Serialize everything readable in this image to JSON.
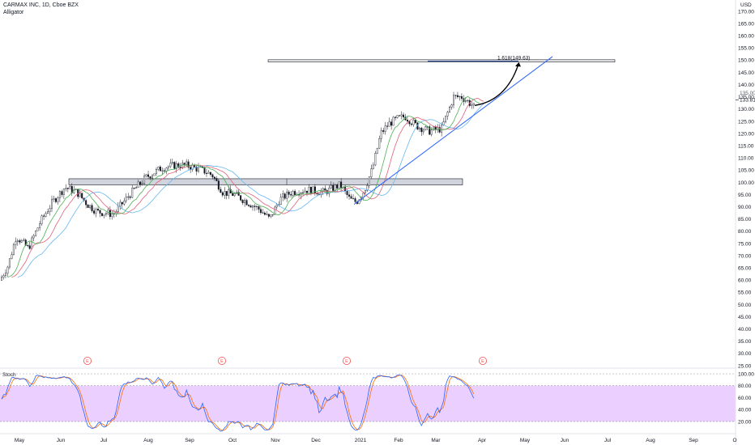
{
  "header": {
    "symbol_line": "CARMAX INC, 1D, Cboe BZX",
    "indicator": "Alligator"
  },
  "stoch_panel": {
    "title": "Stoch"
  },
  "price_axis": {
    "currency": "USD"
  },
  "colors": {
    "up": "#ffffff",
    "down": "#131722",
    "jaw": "#66b7f0",
    "teeth": "#e0607a",
    "lips": "#4caf50",
    "trendline": "#2962ff",
    "stoch_band": "#e8c8ff",
    "stoch_k": "#2962ff",
    "stoch_d": "#ff6d00",
    "zone_fill": "#d1d4dc",
    "earnings": "#ef5350"
  },
  "chart_data": [
    {
      "type": "candlestick",
      "title": "CARMAX INC, 1D, Cboe BZX",
      "ylim": [
        25,
        172
      ],
      "y_ticks": [
        25,
        30,
        35,
        40,
        45,
        50,
        55,
        60,
        65,
        70,
        75,
        80,
        85,
        90,
        95,
        100,
        105,
        110,
        115,
        120,
        125,
        130,
        135,
        140,
        145,
        150,
        155,
        160,
        165,
        170
      ],
      "x_ticks": [
        "May",
        "Jun",
        "Jul",
        "Aug",
        "Sep",
        "Oct",
        "Nov",
        "Dec",
        "2021",
        "Feb",
        "Mar",
        "Apr",
        "May",
        "Jun",
        "Jul",
        "Aug",
        "Sep",
        "O"
      ],
      "last_price_label": "133.81",
      "partial_label": "135.00",
      "price_path_monthly": [
        {
          "month": "May",
          "value": 62
        },
        {
          "month": "Jun",
          "value": 97
        },
        {
          "month": "Jul",
          "value": 88
        },
        {
          "month": "Aug",
          "value": 103
        },
        {
          "month": "Sep",
          "value": 106
        },
        {
          "month": "Oct",
          "value": 96
        },
        {
          "month": "Nov",
          "value": 87
        },
        {
          "month": "Dec",
          "value": 97
        },
        {
          "month": "2021",
          "value": 94
        },
        {
          "month": "Feb",
          "value": 125
        },
        {
          "month": "Mar",
          "value": 121
        },
        {
          "month": "Apr",
          "value": 132
        }
      ],
      "series": [
        {
          "name": "Alligator Jaw",
          "color": "#66b7f0"
        },
        {
          "name": "Alligator Teeth",
          "color": "#e0607a"
        },
        {
          "name": "Alligator Lips",
          "color": "#4caf50"
        }
      ],
      "annotations": {
        "fib_label": "1.618(149.63)",
        "fib_level": 149.63,
        "resistance_zone": [
          99,
          101.5
        ],
        "target_zone": [
          149.3,
          150.2
        ],
        "earnings_marker": "E"
      }
    },
    {
      "type": "line",
      "title": "Stoch",
      "ylim": [
        0,
        100
      ],
      "y_ticks": [
        20,
        40,
        60,
        80,
        100
      ],
      "y_tick_labels": [
        "20.00",
        "40.00",
        "60.00",
        "80.00",
        "100.00"
      ],
      "band": [
        20,
        80
      ]
    }
  ]
}
